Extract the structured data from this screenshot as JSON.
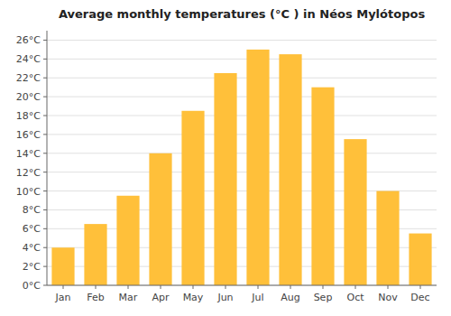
{
  "chart_data": {
    "type": "bar",
    "title": "Average monthly temperatures (°C ) in Néos Mylótopos",
    "categories": [
      "Jan",
      "Feb",
      "Mar",
      "Apr",
      "May",
      "Jun",
      "Jul",
      "Aug",
      "Sep",
      "Oct",
      "Nov",
      "Dec"
    ],
    "values": [
      4.0,
      6.5,
      9.5,
      14.0,
      18.5,
      22.5,
      25.0,
      24.5,
      21.0,
      15.5,
      10.0,
      5.5
    ],
    "color": "#FFC03A",
    "ylim": [
      0,
      27
    ],
    "yticks": [
      {
        "value": 0,
        "label": "0°C"
      },
      {
        "value": 2,
        "label": "2°C"
      },
      {
        "value": 4,
        "label": "4°C"
      },
      {
        "value": 6,
        "label": "6°C"
      },
      {
        "value": 8,
        "label": "8°C"
      },
      {
        "value": 10,
        "label": "10°C"
      },
      {
        "value": 12,
        "label": "12°C"
      },
      {
        "value": 14,
        "label": "14°C"
      },
      {
        "value": 16,
        "label": "16°C"
      },
      {
        "value": 18,
        "label": "18°C"
      },
      {
        "value": 20,
        "label": "20°C"
      },
      {
        "value": 22,
        "label": "22°C"
      },
      {
        "value": 24,
        "label": "24°C"
      },
      {
        "value": 26,
        "label": "26°C"
      }
    ],
    "grid": true
  }
}
